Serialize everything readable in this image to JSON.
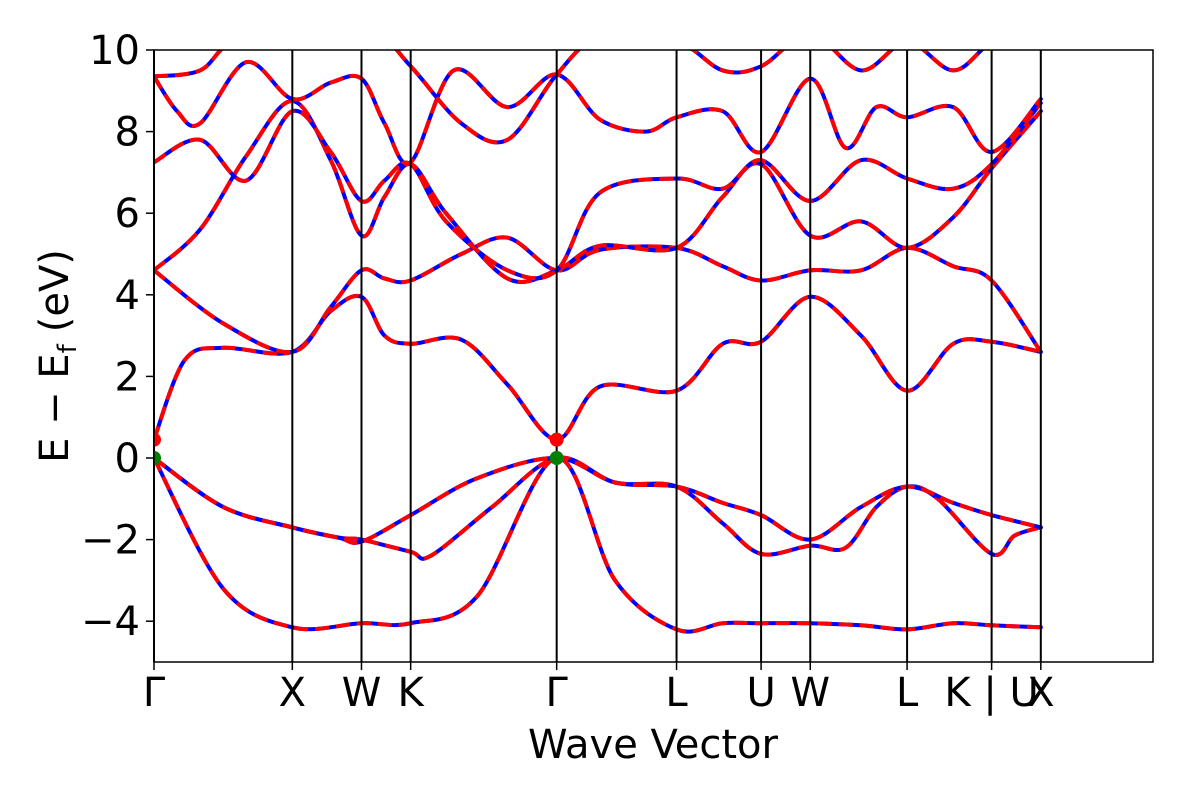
{
  "chart_data": {
    "type": "line",
    "xlabel": "Wave Vector",
    "ylabel_main": "E − E",
    "ylabel_sub": "f",
    "ylabel_unit": "(eV)",
    "ylim": [
      -5,
      10
    ],
    "yticks": [
      -4,
      -2,
      0,
      2,
      4,
      6,
      8,
      10
    ],
    "ytick_labels": [
      "−4",
      "−2",
      "0",
      "2",
      "4",
      "6",
      "8",
      "10"
    ],
    "xlim": [
      0,
      6.5
    ],
    "kpoints": [
      {
        "label": "Γ",
        "x": 0.0
      },
      {
        "label": "X",
        "x": 0.9
      },
      {
        "label": "W",
        "x": 1.35
      },
      {
        "label": "K",
        "x": 1.67
      },
      {
        "label": "Γ",
        "x": 2.62
      },
      {
        "label": "L",
        "x": 3.4
      },
      {
        "label": "U",
        "x": 3.95
      },
      {
        "label": "W",
        "x": 4.27
      },
      {
        "label": "L",
        "x": 4.9
      },
      {
        "label": "K | U",
        "x": 5.45
      },
      {
        "label": "X",
        "x": 5.77
      }
    ],
    "markers": [
      {
        "x": 0.0,
        "y": 0.45,
        "color": "#ff0000"
      },
      {
        "x": 0.0,
        "y": 0.0,
        "color": "#008000"
      },
      {
        "x": 2.62,
        "y": 0.45,
        "color": "#ff0000"
      },
      {
        "x": 2.62,
        "y": 0.0,
        "color": "#008000"
      }
    ],
    "series_colors": {
      "base": "#0000ff",
      "overlay": "#ff0000"
    },
    "bands": [
      {
        "x": [
          0,
          0.45,
          0.9,
          1.35,
          1.67,
          2.1,
          2.62,
          3.0,
          3.4,
          3.7,
          3.95,
          4.27,
          4.6,
          4.9,
          5.2,
          5.45,
          5.77
        ],
        "y": [
          0,
          -3.2,
          -4.15,
          -4.05,
          -4.05,
          -3.4,
          0,
          -3.0,
          -4.2,
          -4.05,
          -4.05,
          -4.05,
          -4.1,
          -4.2,
          -4.05,
          -4.1,
          -4.15
        ]
      },
      {
        "x": [
          0,
          0.45,
          0.9,
          1.2,
          1.35,
          1.67,
          1.8,
          2.2,
          2.62,
          3.0,
          3.4,
          3.7,
          3.95,
          4.27,
          4.5,
          4.7,
          4.9,
          5.1,
          5.45,
          5.6,
          5.77
        ],
        "y": [
          0,
          -1.2,
          -1.7,
          -1.95,
          -2.0,
          -2.3,
          -2.4,
          -1.2,
          0,
          -0.6,
          -0.7,
          -1.6,
          -2.35,
          -2.15,
          -2.2,
          -1.2,
          -0.7,
          -1.0,
          -2.35,
          -1.9,
          -1.7
        ]
      },
      {
        "x": [
          0,
          0.45,
          0.9,
          1.2,
          1.35,
          1.67,
          2.1,
          2.62,
          3.0,
          3.4,
          3.7,
          3.95,
          4.27,
          4.6,
          4.9,
          5.2,
          5.45,
          5.77
        ],
        "y": [
          0,
          -1.2,
          -1.7,
          -1.95,
          -2.05,
          -1.4,
          -0.5,
          0,
          -0.6,
          -0.7,
          -1.1,
          -1.4,
          -2.0,
          -1.2,
          -0.7,
          -1.1,
          -1.4,
          -1.7
        ]
      },
      {
        "x": [
          0,
          0.2,
          0.45,
          0.9,
          1.15,
          1.35,
          1.5,
          1.67,
          2.0,
          2.3,
          2.62,
          2.9,
          3.4,
          3.7,
          3.95,
          4.27,
          4.6,
          4.9,
          5.2,
          5.45,
          5.77
        ],
        "y": [
          0.45,
          2.4,
          2.7,
          2.6,
          3.6,
          3.95,
          3.0,
          2.8,
          2.9,
          1.8,
          0.45,
          1.75,
          1.65,
          2.8,
          2.85,
          3.95,
          3.0,
          1.65,
          2.8,
          2.85,
          2.6
        ]
      },
      {
        "x": [
          0,
          0.45,
          0.9,
          1.15,
          1.35,
          1.5,
          1.67,
          2.0,
          2.3,
          2.62,
          2.9,
          3.4,
          3.7,
          3.95,
          4.27,
          4.6,
          4.9,
          5.2,
          5.45,
          5.77
        ],
        "y": [
          4.6,
          3.3,
          2.6,
          3.7,
          4.6,
          4.4,
          4.35,
          5.0,
          5.4,
          4.6,
          5.1,
          5.15,
          4.7,
          4.35,
          4.6,
          4.6,
          5.15,
          4.7,
          4.35,
          2.6
        ]
      },
      {
        "x": [
          0,
          0.3,
          0.6,
          0.9,
          1.15,
          1.35,
          1.5,
          1.67,
          1.9,
          2.3,
          2.62,
          2.9,
          3.4,
          3.7,
          3.95,
          4.27,
          4.6,
          4.9,
          5.2,
          5.45,
          5.77
        ],
        "y": [
          4.6,
          5.6,
          7.4,
          8.75,
          7.3,
          5.45,
          6.4,
          7.2,
          6.0,
          4.4,
          4.6,
          5.2,
          5.15,
          6.4,
          7.2,
          5.45,
          5.8,
          5.15,
          5.9,
          7.1,
          8.5
        ]
      },
      {
        "x": [
          0,
          0.3,
          0.6,
          0.9,
          1.15,
          1.35,
          1.5,
          1.67,
          1.9,
          2.3,
          2.62,
          2.9,
          3.4,
          3.7,
          3.95,
          4.27,
          4.6,
          4.9,
          5.2,
          5.45,
          5.77
        ],
        "y": [
          7.25,
          7.8,
          6.8,
          8.5,
          7.5,
          6.3,
          6.8,
          7.2,
          5.8,
          4.6,
          4.6,
          6.5,
          6.85,
          6.6,
          7.3,
          6.3,
          7.3,
          6.85,
          6.6,
          7.2,
          8.7
        ]
      },
      {
        "x": [
          0,
          0.15,
          0.3,
          0.6,
          0.9,
          1.15,
          1.35,
          1.5,
          1.67,
          1.95,
          2.3,
          2.62,
          2.9,
          3.2,
          3.4,
          3.7,
          3.95,
          4.27,
          4.5,
          4.7,
          4.9,
          5.2,
          5.45,
          5.77
        ],
        "y": [
          9.35,
          8.5,
          8.2,
          9.7,
          8.8,
          9.2,
          9.3,
          8.2,
          7.25,
          9.5,
          8.6,
          9.4,
          8.3,
          8.0,
          8.35,
          8.5,
          7.5,
          9.3,
          7.6,
          8.6,
          8.35,
          8.6,
          7.5,
          8.8
        ]
      },
      {
        "x": [
          0,
          0.3,
          0.5,
          0.9,
          1.35,
          1.67,
          2.0,
          2.3,
          2.62,
          2.9,
          3.4,
          3.7,
          3.95,
          4.27,
          4.6,
          4.9,
          5.2,
          5.45,
          5.77
        ],
        "y": [
          9.35,
          9.5,
          10.2,
          10.8,
          10.8,
          9.6,
          8.2,
          7.8,
          9.4,
          10.3,
          10.2,
          9.5,
          9.6,
          10.4,
          9.5,
          10.2,
          9.5,
          10.2,
          10.8
        ]
      }
    ]
  }
}
